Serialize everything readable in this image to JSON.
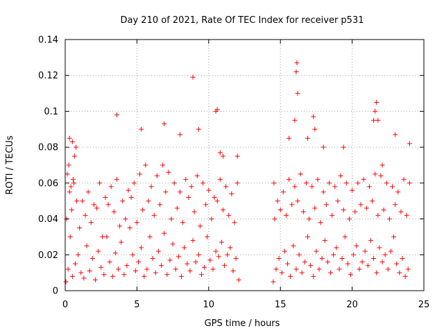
{
  "chart_data": {
    "type": "scatter",
    "title": "Day 210 of 2021, Rate Of TEC Index for receiver p531",
    "xlabel": "GPS time / hours",
    "ylabel": "ROTI / TECUs",
    "xlim": [
      0,
      25
    ],
    "ylim": [
      0,
      0.14
    ],
    "xticks": [
      0,
      5,
      10,
      15,
      20,
      25
    ],
    "xtick_labels": [
      "0",
      "5",
      "10",
      "15",
      "20",
      "25"
    ],
    "yticks": [
      0,
      0.02,
      0.04,
      0.06,
      0.08,
      0.1,
      0.12,
      0.14
    ],
    "ytick_labels": [
      "0",
      "0.02",
      "0.04",
      "0.06",
      "0.08",
      "0.1",
      "0.12",
      "0.14"
    ],
    "grid": true,
    "marker": "plus",
    "color": "#ff0000",
    "series": [
      {
        "x": [
          0.05,
          0.2,
          0.35,
          0.5,
          0.7,
          0.9,
          1.1,
          1.3,
          1.5,
          1.7,
          1.9,
          2.1,
          2.3,
          2.5,
          2.7,
          2.9,
          3.1,
          3.3,
          3.5,
          3.7,
          3.9,
          4.1,
          4.3,
          4.5,
          4.7,
          4.9,
          5.1,
          5.3,
          5.5,
          5.7,
          5.9,
          6.1,
          6.3,
          6.5,
          6.7,
          6.9,
          7.1,
          7.3,
          7.5,
          7.7,
          7.9,
          8.1,
          8.3,
          8.5,
          8.7,
          8.9,
          9.1,
          9.3,
          9.5,
          9.7,
          9.9,
          10.1,
          10.3,
          10.5,
          10.7,
          10.9,
          11.1,
          11.3,
          11.5,
          11.7,
          11.9,
          12.1,
          0.1,
          0.3,
          0.45,
          0.6,
          0.8,
          1.0,
          1.4,
          1.8,
          2.2,
          2.6,
          3.0,
          3.4,
          3.8,
          4.2,
          4.6,
          5.0,
          5.4,
          5.8,
          6.2,
          6.6,
          7.0,
          7.4,
          7.8,
          8.2,
          8.6,
          9.0,
          9.4,
          9.8,
          10.2,
          10.6,
          11.0,
          11.4,
          11.8,
          0.15,
          0.25,
          0.4,
          0.55,
          0.65,
          0.75,
          1.2,
          1.6,
          2.0,
          2.4,
          2.8,
          3.2,
          3.6,
          4.0,
          4.4,
          4.8,
          5.2,
          5.6,
          6.0,
          6.4,
          6.8,
          7.2,
          7.6,
          8.0,
          8.4,
          8.8,
          9.2,
          9.6,
          10.0,
          10.4,
          10.8,
          11.2,
          11.6,
          12.0,
          0.3,
          0.5,
          3.6,
          5.3,
          6.9,
          8.0,
          8.9,
          9.3,
          10.5,
          10.6,
          10.8,
          11.0,
          12.0,
          14.5,
          14.7,
          14.9,
          15.1,
          15.3,
          15.5,
          15.7,
          15.9,
          16.1,
          16.3,
          16.5,
          16.7,
          16.9,
          17.1,
          17.3,
          17.5,
          17.7,
          17.9,
          18.1,
          18.3,
          18.5,
          18.7,
          18.9,
          19.1,
          19.3,
          19.5,
          19.7,
          19.9,
          20.1,
          20.3,
          20.5,
          20.7,
          20.9,
          21.1,
          21.3,
          21.5,
          21.7,
          21.9,
          22.1,
          22.3,
          22.5,
          22.7,
          22.9,
          23.1,
          23.3,
          23.5,
          23.7,
          23.9,
          14.6,
          14.8,
          15.0,
          15.4,
          15.8,
          16.2,
          16.6,
          17.0,
          17.4,
          17.8,
          18.2,
          18.6,
          19.0,
          19.4,
          19.8,
          20.2,
          20.6,
          21.0,
          21.4,
          21.8,
          22.2,
          22.6,
          23.0,
          23.4,
          23.8,
          14.55,
          15.2,
          15.6,
          16.0,
          16.4,
          16.8,
          17.2,
          17.6,
          18.0,
          18.4,
          18.8,
          19.2,
          19.6,
          20.0,
          20.4,
          20.8,
          21.2,
          21.6,
          22.0,
          22.4,
          22.8,
          23.2,
          23.6,
          24.0,
          15.6,
          16.0,
          16.1,
          16.15,
          16.2,
          16.9,
          17.3,
          17.4,
          18.0,
          19.4,
          21.5,
          21.6,
          21.7,
          21.8,
          22.1,
          23.0,
          24.0
        ],
        "y": [
          0.005,
          0.012,
          0.03,
          0.008,
          0.015,
          0.02,
          0.01,
          0.007,
          0.025,
          0.011,
          0.018,
          0.006,
          0.022,
          0.013,
          0.009,
          0.03,
          0.016,
          0.008,
          0.021,
          0.012,
          0.027,
          0.009,
          0.014,
          0.035,
          0.02,
          0.011,
          0.016,
          0.024,
          0.008,
          0.012,
          0.03,
          0.018,
          0.01,
          0.022,
          0.014,
          0.032,
          0.009,
          0.017,
          0.026,
          0.012,
          0.019,
          0.008,
          0.024,
          0.015,
          0.011,
          0.028,
          0.016,
          0.02,
          0.009,
          0.013,
          0.03,
          0.017,
          0.012,
          0.022,
          0.019,
          0.027,
          0.014,
          0.02,
          0.024,
          0.011,
          0.018,
          0.006,
          0.04,
          0.055,
          0.045,
          0.06,
          0.05,
          0.035,
          0.042,
          0.038,
          0.046,
          0.03,
          0.048,
          0.044,
          0.036,
          0.04,
          0.052,
          0.038,
          0.045,
          0.05,
          0.042,
          0.048,
          0.055,
          0.04,
          0.046,
          0.038,
          0.052,
          0.044,
          0.036,
          0.048,
          0.04,
          0.05,
          0.045,
          0.042,
          0.038,
          0.065,
          0.07,
          0.058,
          0.062,
          0.075,
          0.08,
          0.05,
          0.055,
          0.048,
          0.06,
          0.052,
          0.058,
          0.062,
          0.05,
          0.056,
          0.06,
          0.065,
          0.07,
          0.058,
          0.064,
          0.07,
          0.066,
          0.06,
          0.055,
          0.062,
          0.058,
          0.064,
          0.06,
          0.056,
          0.052,
          0.062,
          0.058,
          0.054,
          0.06,
          0.085,
          0.083,
          0.098,
          0.09,
          0.093,
          0.087,
          0.119,
          0.09,
          0.1,
          0.101,
          0.077,
          0.075,
          0.075,
          0.005,
          0.012,
          0.018,
          0.01,
          0.022,
          0.015,
          0.008,
          0.025,
          0.012,
          0.02,
          0.01,
          0.016,
          0.03,
          0.014,
          0.008,
          0.022,
          0.012,
          0.018,
          0.028,
          0.016,
          0.01,
          0.02,
          0.024,
          0.012,
          0.018,
          0.03,
          0.015,
          0.009,
          0.02,
          0.025,
          0.012,
          0.016,
          0.022,
          0.014,
          0.028,
          0.018,
          0.01,
          0.024,
          0.016,
          0.02,
          0.012,
          0.022,
          0.03,
          0.015,
          0.01,
          0.018,
          0.008,
          0.012,
          0.04,
          0.05,
          0.045,
          0.042,
          0.048,
          0.05,
          0.044,
          0.04,
          0.046,
          0.038,
          0.048,
          0.042,
          0.05,
          0.045,
          0.04,
          0.044,
          0.048,
          0.046,
          0.05,
          0.042,
          0.045,
          0.04,
          0.048,
          0.044,
          0.042,
          0.06,
          0.055,
          0.062,
          0.058,
          0.065,
          0.06,
          0.058,
          0.062,
          0.055,
          0.06,
          0.058,
          0.064,
          0.06,
          0.056,
          0.06,
          0.062,
          0.058,
          0.065,
          0.064,
          0.06,
          0.058,
          0.055,
          0.062,
          0.06,
          0.085,
          0.095,
          0.122,
          0.127,
          0.11,
          0.085,
          0.097,
          0.09,
          0.08,
          0.08,
          0.095,
          0.1,
          0.105,
          0.095,
          0.07,
          0.087,
          0.082
        ]
      }
    ]
  }
}
